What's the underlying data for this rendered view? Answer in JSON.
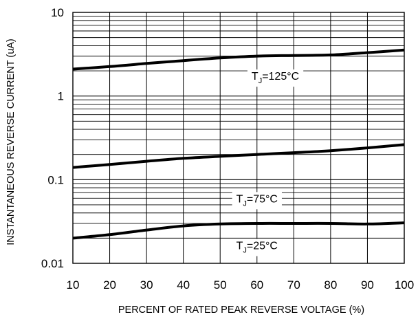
{
  "chart_data": {
    "type": "line",
    "xlabel": "PERCENT OF RATED PEAK REVERSE VOLTAGE (%)",
    "ylabel": "INSTANTANEOUS REVERSE CURRENT (uA)",
    "xlim": [
      10,
      100
    ],
    "ylim": [
      0.01,
      10
    ],
    "yscale": "log",
    "grid": true,
    "x_ticks": [
      "10",
      "20",
      "30",
      "40",
      "50",
      "60",
      "70",
      "80",
      "90",
      "100"
    ],
    "y_ticks": [
      "0.01",
      "0.1",
      "1",
      "10"
    ],
    "series": [
      {
        "name": "TJ=125°C",
        "label_main": "T",
        "label_sub": "J",
        "label_rest": "=125°C",
        "label_at": [
          65,
          1.75
        ],
        "points": [
          [
            10,
            2.1
          ],
          [
            20,
            2.25
          ],
          [
            30,
            2.45
          ],
          [
            40,
            2.65
          ],
          [
            50,
            2.85
          ],
          [
            60,
            3.0
          ],
          [
            70,
            3.05
          ],
          [
            80,
            3.1
          ],
          [
            90,
            3.3
          ],
          [
            100,
            3.55
          ]
        ]
      },
      {
        "name": "TJ=75°C",
        "label_main": "T",
        "label_sub": "J",
        "label_rest": "=75°C",
        "label_at": [
          60,
          0.06
        ],
        "points": [
          [
            10,
            0.14
          ],
          [
            20,
            0.152
          ],
          [
            30,
            0.166
          ],
          [
            40,
            0.18
          ],
          [
            50,
            0.19
          ],
          [
            60,
            0.2
          ],
          [
            70,
            0.21
          ],
          [
            80,
            0.222
          ],
          [
            90,
            0.24
          ],
          [
            100,
            0.262
          ]
        ]
      },
      {
        "name": "TJ=25°C",
        "label_main": "T",
        "label_sub": "J",
        "label_rest": "=25°C",
        "label_at": [
          60,
          0.0165
        ],
        "points": [
          [
            10,
            0.02
          ],
          [
            20,
            0.022
          ],
          [
            30,
            0.025
          ],
          [
            40,
            0.028
          ],
          [
            50,
            0.0295
          ],
          [
            60,
            0.03
          ],
          [
            70,
            0.03
          ],
          [
            80,
            0.03
          ],
          [
            90,
            0.0295
          ],
          [
            100,
            0.0305
          ]
        ]
      }
    ]
  }
}
